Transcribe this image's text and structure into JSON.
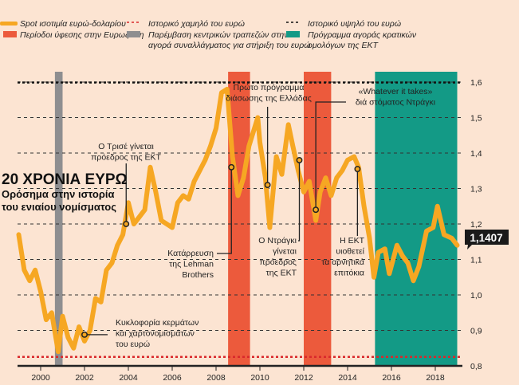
{
  "title": "20 ΧΡΟΝΙΑ ΕΥΡΩ",
  "subtitle": [
    "Ορόσημα στην ιστορία",
    "του ενιαίου νομίσματος"
  ],
  "legend": [
    {
      "label": "Spot ισοτιμία ευρώ-δολαρίου",
      "color": "#f6a723",
      "kind": "line"
    },
    {
      "label": "Περίοδοι ύφεσης στην Ευρωζώνη",
      "color": "#ec5a3c",
      "kind": "box"
    },
    {
      "label": "Ιστορικό χαμηλό του ευρώ",
      "color": "#d9282b",
      "kind": "dashed"
    },
    {
      "label": "Παρέμβαση κεντρικών τραπεζών στην",
      "label2": "αγορά συναλλάγματος για στήριξη του ευρώ",
      "color": "#8e8e90",
      "kind": "box"
    },
    {
      "label": "Ιστορικό υψηλό του ευρώ",
      "color": "#111111",
      "kind": "dashed"
    },
    {
      "label": "Πρόγραμμα αγοράς κρατικών",
      "label2": "ομολόγων της ΕΚΤ",
      "color": "#139a86",
      "kind": "box"
    }
  ],
  "chart_data": {
    "type": "line",
    "xlim": [
      1999,
      2019
    ],
    "ylim": [
      0.8,
      1.6
    ],
    "x_ticks": [
      2000,
      2002,
      2004,
      2006,
      2008,
      2010,
      2012,
      2014,
      2016,
      2018
    ],
    "y_ticks": [
      0.8,
      0.9,
      1.0,
      1.1,
      1.2,
      1.3,
      1.4,
      1.5,
      1.6
    ],
    "y_tick_labels": [
      "0,8",
      "0,9",
      "1,0",
      "1,1",
      "1,2",
      "1,3",
      "1,4",
      "1,5",
      "1,6"
    ],
    "grid": "horizontal dashed",
    "historic_low": 0.8252,
    "historic_high": 1.599,
    "last_value_label": "1,1407",
    "series": [
      {
        "x": [
          1999.0,
          1999.25,
          1999.5,
          1999.75,
          2000.0,
          2000.25,
          2000.5,
          2000.8,
          2001.0,
          2001.25,
          2001.5,
          2001.75,
          2002.0,
          2002.25,
          2002.5,
          2002.75,
          2003.0,
          2003.25,
          2003.5,
          2003.75,
          2004.0,
          2004.25,
          2004.5,
          2004.75,
          2005.0,
          2005.25,
          2005.5,
          2005.75,
          2006.0,
          2006.25,
          2006.5,
          2006.75,
          2007.0,
          2007.25,
          2007.5,
          2007.75,
          2008.0,
          2008.25,
          2008.5,
          2008.75,
          2009.0,
          2009.25,
          2009.5,
          2009.9,
          2010.0,
          2010.25,
          2010.45,
          2010.75,
          2011.0,
          2011.3,
          2011.5,
          2011.75,
          2012.0,
          2012.25,
          2012.55,
          2012.75,
          2013.0,
          2013.25,
          2013.5,
          2013.75,
          2014.0,
          2014.3,
          2014.5,
          2014.75,
          2015.0,
          2015.2,
          2015.4,
          2015.7,
          2015.9,
          2016.25,
          2016.5,
          2016.75,
          2017.0,
          2017.25,
          2017.6,
          2017.9,
          2018.1,
          2018.4,
          2018.75,
          2019.0
        ],
        "y": [
          1.17,
          1.07,
          1.04,
          1.07,
          1.01,
          0.93,
          0.95,
          0.84,
          0.94,
          0.88,
          0.85,
          0.91,
          0.87,
          0.9,
          0.99,
          0.98,
          1.07,
          1.09,
          1.14,
          1.17,
          1.26,
          1.2,
          1.22,
          1.24,
          1.36,
          1.29,
          1.21,
          1.2,
          1.19,
          1.26,
          1.28,
          1.27,
          1.32,
          1.35,
          1.38,
          1.42,
          1.47,
          1.57,
          1.58,
          1.39,
          1.28,
          1.33,
          1.42,
          1.5,
          1.43,
          1.33,
          1.19,
          1.39,
          1.34,
          1.48,
          1.42,
          1.35,
          1.29,
          1.32,
          1.21,
          1.29,
          1.33,
          1.28,
          1.33,
          1.35,
          1.38,
          1.39,
          1.36,
          1.25,
          1.16,
          1.05,
          1.12,
          1.13,
          1.06,
          1.14,
          1.11,
          1.09,
          1.04,
          1.08,
          1.18,
          1.19,
          1.25,
          1.17,
          1.16,
          1.14
        ]
      }
    ],
    "shaded_periods": [
      {
        "type": "intervention",
        "start": 2000.65,
        "end": 2001.0,
        "color": "#8e8e90"
      },
      {
        "type": "recession",
        "start": 2008.55,
        "end": 2009.55,
        "color": "#ec5a3c"
      },
      {
        "type": "recession",
        "start": 2012.0,
        "end": 2013.25,
        "color": "#ec5a3c"
      },
      {
        "type": "ecb-qe",
        "start": 2015.25,
        "end": 2019.0,
        "color": "#139a86"
      }
    ],
    "annotations": [
      {
        "x": 2003.9,
        "y": 1.2,
        "lines": [
          "Ο Τρισέ γίνεται",
          "πρόεδρος της ΕΚΤ"
        ]
      },
      {
        "x": 2008.7,
        "y": 1.36,
        "lines": [
          "Κατάρρευση",
          "της Lehman",
          "Brothers"
        ]
      },
      {
        "x": 2010.35,
        "y": 1.31,
        "lines": [
          "Πρώτο πρόγραμμα",
          "διάσωσης της Ελλάδας"
        ]
      },
      {
        "x": 2011.8,
        "y": 1.38,
        "lines": [
          "Ο Ντράγκι",
          "γίνεται",
          "πρόεδρος",
          "της ΕΚΤ"
        ]
      },
      {
        "x": 2012.55,
        "y": 1.24,
        "lines": [
          "«Whatever it takes»",
          "διά στόματος Ντράγκι"
        ]
      },
      {
        "x": 2014.45,
        "y": 1.355,
        "lines": [
          "Η ΕΚΤ",
          "υιοθετεί",
          "τα αρνητικά",
          "επιτόκια"
        ]
      },
      {
        "x": 2002.0,
        "y": 0.888,
        "lines": [
          "Κυκλοφορία κερμάτων",
          "και χαρτονομισμάτων",
          "του ευρώ"
        ]
      }
    ]
  }
}
